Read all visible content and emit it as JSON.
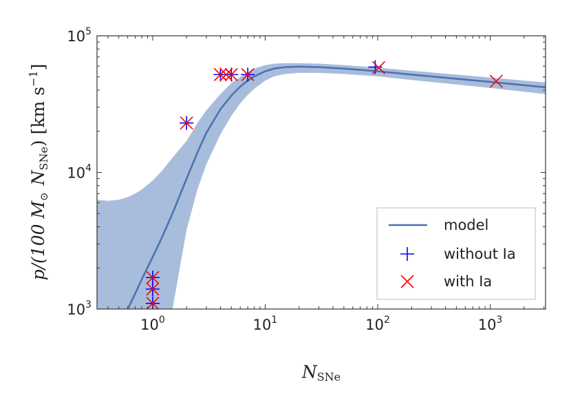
{
  "chart_data": {
    "type": "scatter",
    "xlabel": {
      "main": "N",
      "sub": "SNe"
    },
    "ylabel": {
      "pre": "p/(100 ",
      "m": "M",
      "sun": "⊙",
      "n": "N",
      "sub": "SNe",
      "post": ") [km s",
      "exp": "−1",
      "end": "]"
    },
    "xscale": "log",
    "yscale": "log",
    "xlim": [
      0.32,
      3100
    ],
    "ylim": [
      1000,
      100000
    ],
    "grid": false,
    "legend_position": "lower-right",
    "x_ticks": [
      {
        "value": 1,
        "base": "10",
        "exp": "0"
      },
      {
        "value": 10,
        "base": "10",
        "exp": "1"
      },
      {
        "value": 100,
        "base": "10",
        "exp": "2"
      },
      {
        "value": 1000,
        "base": "10",
        "exp": "3"
      }
    ],
    "y_ticks": [
      {
        "value": 1000,
        "base": "10",
        "exp": "3"
      },
      {
        "value": 10000,
        "base": "10",
        "exp": "4"
      },
      {
        "value": 100000,
        "base": "10",
        "exp": "5"
      }
    ],
    "series": [
      {
        "name": "model",
        "kind": "line",
        "color": "#4c72b0",
        "x": [
          0.6,
          0.7,
          0.8,
          1.0,
          1.2,
          1.5,
          2.0,
          2.5,
          3.0,
          4.0,
          5.0,
          6.0,
          7.0,
          8.0,
          10,
          12,
          15,
          20,
          30,
          50,
          100,
          200,
          500,
          1000,
          2000,
          3100
        ],
        "y": [
          1000,
          1300,
          1650,
          2400,
          3300,
          5000,
          9000,
          14000,
          19500,
          29000,
          36500,
          42500,
          47000,
          50500,
          55000,
          57500,
          59000,
          59500,
          59000,
          57500,
          55000,
          52000,
          48500,
          46000,
          43500,
          42000
        ]
      },
      {
        "name": "",
        "kind": "band",
        "color": "#a8bcdc",
        "x": [
          0.32,
          0.4,
          0.5,
          0.6,
          0.7,
          0.8,
          1.0,
          1.2,
          1.5,
          2.0,
          2.5,
          3.0,
          4.0,
          5.0,
          6.0,
          7.0,
          8.0,
          10,
          12,
          15,
          20,
          30,
          50,
          100,
          200,
          500,
          1000,
          2000,
          3100
        ],
        "upper": [
          6300,
          6200,
          6300,
          6600,
          7000,
          7500,
          8700,
          10200,
          12800,
          17000,
          23000,
          28500,
          37500,
          45000,
          50000,
          54000,
          57500,
          61000,
          62500,
          63000,
          63000,
          62500,
          61000,
          58500,
          55500,
          52000,
          49500,
          47000,
          45500
        ],
        "lower": [
          1000,
          1000,
          1000,
          1000,
          1000,
          1000,
          1000,
          1000,
          1000,
          3800,
          7500,
          11500,
          19000,
          26000,
          32000,
          37000,
          41000,
          47000,
          50500,
          52500,
          53500,
          53500,
          52500,
          50500,
          47500,
          44000,
          41500,
          39000,
          37500
        ]
      },
      {
        "name": "without Ia",
        "kind": "marker",
        "marker": "plus",
        "color": "#0000ff",
        "x": [
          1,
          1,
          1,
          2,
          4,
          5,
          7,
          95
        ],
        "y": [
          1100,
          1400,
          1700,
          23000,
          52000,
          52000,
          52000,
          59000
        ]
      },
      {
        "name": "with Ia",
        "kind": "marker",
        "marker": "x",
        "color": "#ff0000",
        "x": [
          1,
          1,
          1,
          2,
          4,
          4.5,
          5,
          7,
          102,
          1130
        ],
        "y": [
          1100,
          1400,
          1700,
          23000,
          52000,
          52000,
          52000,
          52000,
          58500,
          46500
        ]
      }
    ],
    "legend": [
      {
        "label": "model",
        "symbol": "line",
        "color": "#4c72b0"
      },
      {
        "label": "without Ia",
        "symbol": "plus",
        "color": "#0000ff"
      },
      {
        "label": "with Ia",
        "symbol": "x",
        "color": "#ff0000"
      }
    ]
  }
}
